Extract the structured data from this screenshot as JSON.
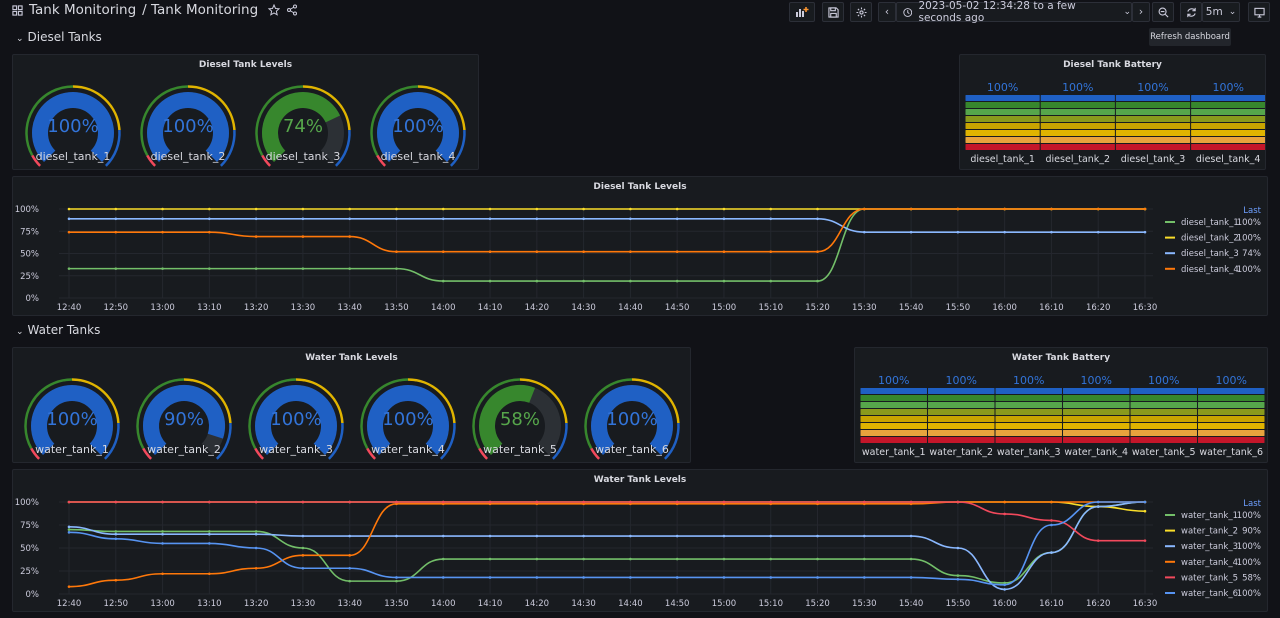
{
  "header": {
    "title": "Tank Monitoring",
    "subtitle": "/ Tank Monitoring",
    "time_range": "2023-05-02 12:34:28 to a few seconds ago",
    "refresh_interval": "5m",
    "tooltip": "Refresh dashboard"
  },
  "sections": {
    "diesel": "Diesel Tanks",
    "water": "Water Tanks"
  },
  "colors": {
    "blue": "#1f60c4",
    "green": "#37872d",
    "yellow": "#fade2a",
    "orange": "#ff780a",
    "red": "#f2495c",
    "light_blue": "#8ab8ff",
    "light_green": "#73bf69"
  },
  "diesel_gauges": {
    "title": "Diesel Tank Levels",
    "items": [
      {
        "name": "diesel_tank_1",
        "value": "100%",
        "level": 1.0,
        "color": "#1f60c4"
      },
      {
        "name": "diesel_tank_2",
        "value": "100%",
        "level": 1.0,
        "color": "#1f60c4"
      },
      {
        "name": "diesel_tank_3",
        "value": "74%",
        "level": 0.74,
        "color": "#37872d"
      },
      {
        "name": "diesel_tank_4",
        "value": "100%",
        "level": 1.0,
        "color": "#1f60c4"
      }
    ]
  },
  "diesel_battery": {
    "title": "Diesel Tank Battery",
    "items": [
      {
        "name": "diesel_tank_1",
        "value": "100%"
      },
      {
        "name": "diesel_tank_2",
        "value": "100%"
      },
      {
        "name": "diesel_tank_3",
        "value": "100%"
      },
      {
        "name": "diesel_tank_4",
        "value": "100%"
      }
    ]
  },
  "water_gauges": {
    "title": "Water Tank Levels",
    "items": [
      {
        "name": "water_tank_1",
        "value": "100%",
        "level": 1.0,
        "color": "#1f60c4"
      },
      {
        "name": "water_tank_2",
        "value": "90%",
        "level": 0.9,
        "color": "#1f60c4"
      },
      {
        "name": "water_tank_3",
        "value": "100%",
        "level": 1.0,
        "color": "#1f60c4"
      },
      {
        "name": "water_tank_4",
        "value": "100%",
        "level": 1.0,
        "color": "#1f60c4"
      },
      {
        "name": "water_tank_5",
        "value": "58%",
        "level": 0.58,
        "color": "#37872d"
      },
      {
        "name": "water_tank_6",
        "value": "100%",
        "level": 1.0,
        "color": "#1f60c4"
      }
    ]
  },
  "water_battery": {
    "title": "Water Tank Battery",
    "items": [
      {
        "name": "water_tank_1",
        "value": "100%"
      },
      {
        "name": "water_tank_2",
        "value": "100%"
      },
      {
        "name": "water_tank_3",
        "value": "100%"
      },
      {
        "name": "water_tank_4",
        "value": "100%"
      },
      {
        "name": "water_tank_5",
        "value": "100%"
      },
      {
        "name": "water_tank_6",
        "value": "100%"
      }
    ]
  },
  "chart_data": [
    {
      "type": "line",
      "title": "Diesel Tank Levels",
      "x": [
        "12:40",
        "12:50",
        "13:00",
        "13:10",
        "13:20",
        "13:30",
        "13:40",
        "13:50",
        "14:00",
        "14:10",
        "14:20",
        "14:30",
        "14:40",
        "14:50",
        "15:00",
        "15:10",
        "15:20",
        "15:30",
        "15:40",
        "15:50",
        "16:00",
        "16:10",
        "16:20",
        "16:30"
      ],
      "y_ticks": [
        "0%",
        "25%",
        "50%",
        "75%",
        "100%"
      ],
      "ylim": [
        0,
        100
      ],
      "legend_header": "Last",
      "series": [
        {
          "name": "diesel_tank_1",
          "last": "100%",
          "color": "#73bf69",
          "values": [
            33,
            33,
            33,
            33,
            33,
            33,
            33,
            33,
            19,
            19,
            19,
            19,
            19,
            19,
            19,
            19,
            19,
            100,
            100,
            100,
            100,
            100,
            100,
            100
          ]
        },
        {
          "name": "diesel_tank_2",
          "last": "100%",
          "color": "#fade2a",
          "values": [
            100,
            100,
            100,
            100,
            100,
            100,
            100,
            100,
            100,
            100,
            100,
            100,
            100,
            100,
            100,
            100,
            100,
            100,
            100,
            100,
            100,
            100,
            100,
            100
          ]
        },
        {
          "name": "diesel_tank_3",
          "last": "74%",
          "color": "#8ab8ff",
          "values": [
            89,
            89,
            89,
            89,
            89,
            89,
            89,
            89,
            89,
            89,
            89,
            89,
            89,
            89,
            89,
            89,
            89,
            74,
            74,
            74,
            74,
            74,
            74,
            74
          ]
        },
        {
          "name": "diesel_tank_4",
          "last": "100%",
          "color": "#ff780a",
          "values": [
            74,
            74,
            74,
            74,
            69,
            69,
            69,
            52,
            52,
            52,
            52,
            52,
            52,
            52,
            52,
            52,
            52,
            100,
            100,
            100,
            100,
            100,
            100,
            100
          ]
        }
      ]
    },
    {
      "type": "line",
      "title": "Water Tank Levels",
      "x": [
        "12:40",
        "12:50",
        "13:00",
        "13:10",
        "13:20",
        "13:30",
        "13:40",
        "13:50",
        "14:00",
        "14:10",
        "14:20",
        "14:30",
        "14:40",
        "14:50",
        "15:00",
        "15:10",
        "15:20",
        "15:30",
        "15:40",
        "15:50",
        "16:00",
        "16:10",
        "16:20",
        "16:30"
      ],
      "y_ticks": [
        "0%",
        "25%",
        "50%",
        "75%",
        "100%"
      ],
      "ylim": [
        0,
        100
      ],
      "legend_header": "Last",
      "series": [
        {
          "name": "water_tank_1",
          "last": "100%",
          "color": "#73bf69",
          "values": [
            70,
            68,
            68,
            68,
            68,
            50,
            14,
            14,
            38,
            38,
            38,
            38,
            38,
            38,
            38,
            38,
            38,
            38,
            38,
            20,
            12,
            45,
            95,
            100
          ]
        },
        {
          "name": "water_tank_2",
          "last": "90%",
          "color": "#fade2a",
          "values": [
            100,
            100,
            100,
            100,
            100,
            100,
            100,
            100,
            100,
            100,
            100,
            100,
            100,
            100,
            100,
            100,
            100,
            100,
            100,
            100,
            100,
            100,
            95,
            90
          ]
        },
        {
          "name": "water_tank_3",
          "last": "100%",
          "color": "#8ab8ff",
          "values": [
            73,
            65,
            65,
            65,
            65,
            63,
            63,
            63,
            63,
            63,
            63,
            63,
            63,
            63,
            63,
            63,
            63,
            63,
            63,
            50,
            5,
            45,
            95,
            100
          ]
        },
        {
          "name": "water_tank_4",
          "last": "100%",
          "color": "#ff780a",
          "values": [
            8,
            15,
            22,
            22,
            28,
            42,
            42,
            98,
            98,
            98,
            98,
            98,
            98,
            98,
            98,
            98,
            98,
            98,
            98,
            100,
            100,
            100,
            100,
            100
          ]
        },
        {
          "name": "water_tank_5",
          "last": "58%",
          "color": "#f2495c",
          "values": [
            100,
            100,
            100,
            100,
            100,
            100,
            100,
            100,
            100,
            100,
            100,
            100,
            100,
            100,
            100,
            100,
            100,
            100,
            100,
            100,
            87,
            80,
            58,
            58
          ]
        },
        {
          "name": "water_tank_6",
          "last": "100%",
          "color": "#5794f2",
          "values": [
            67,
            60,
            55,
            55,
            50,
            28,
            28,
            18,
            18,
            18,
            18,
            18,
            18,
            18,
            18,
            18,
            18,
            18,
            18,
            16,
            10,
            75,
            100,
            100
          ]
        }
      ]
    }
  ]
}
